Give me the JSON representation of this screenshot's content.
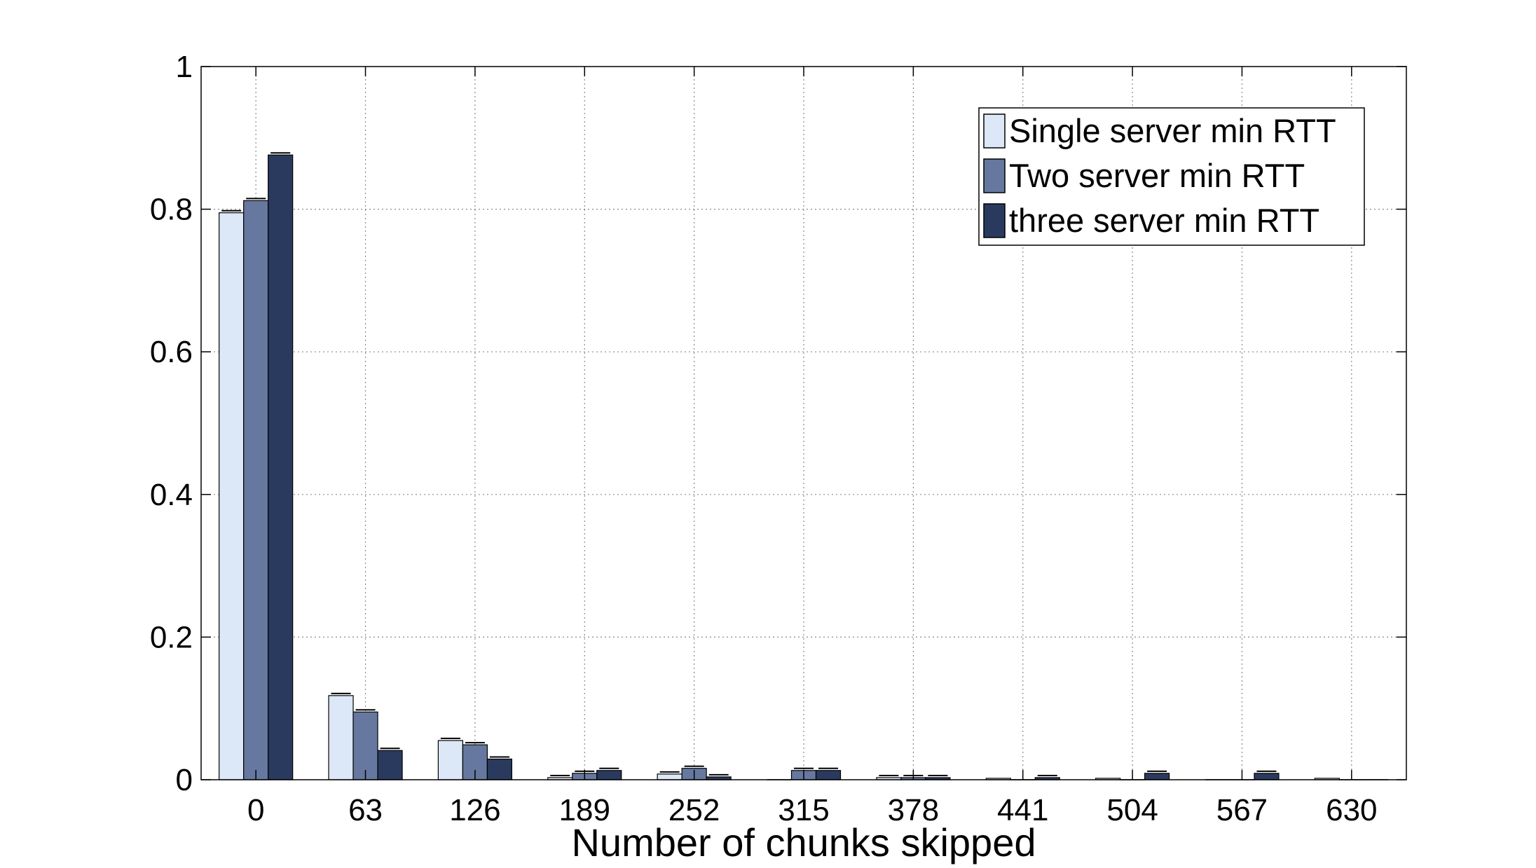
{
  "chart_data": {
    "type": "bar",
    "title": "",
    "xlabel": "Number of chunks skipped",
    "ylabel": "",
    "categories": [
      "0",
      "63",
      "126",
      "189",
      "252",
      "315",
      "378",
      "441",
      "504",
      "567",
      "630"
    ],
    "ylim": [
      0,
      1
    ],
    "yticks": [
      "0",
      "0.2",
      "0.4",
      "0.6",
      "0.8",
      "1"
    ],
    "grid": true,
    "legend_position": "top-right",
    "series": [
      {
        "name": "Single server min RTT",
        "color": "#dce8f7",
        "values": [
          0.795,
          0.118,
          0.055,
          0.003,
          0.008,
          0.0,
          0.003,
          0.002,
          0.002,
          0.0,
          0.002
        ]
      },
      {
        "name": "Two server min RTT",
        "color": "#66789f",
        "values": [
          0.812,
          0.095,
          0.049,
          0.009,
          0.016,
          0.013,
          0.003,
          0.0,
          0.0,
          0.0,
          0.0
        ]
      },
      {
        "name": "three server min RTT",
        "color": "#2a3a5e",
        "values": [
          0.876,
          0.041,
          0.029,
          0.013,
          0.004,
          0.013,
          0.003,
          0.003,
          0.009,
          0.009,
          0.0
        ]
      }
    ],
    "error_bars": true
  }
}
